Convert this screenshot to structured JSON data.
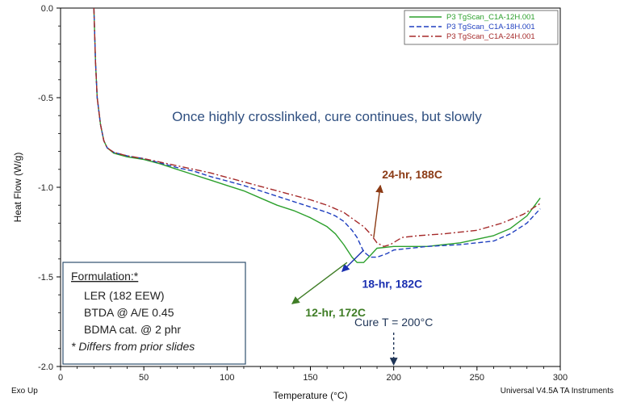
{
  "chart_data": {
    "type": "line",
    "xlabel": "Temperature (°C)",
    "ylabel": "Heat Flow (W/g)",
    "xlim": [
      0,
      300
    ],
    "ylim": [
      -2.0,
      0.0
    ],
    "x_ticks": [
      0,
      50,
      100,
      150,
      200,
      250,
      300
    ],
    "y_ticks": [
      0.0,
      -0.5,
      -1.0,
      -1.5,
      -2.0
    ],
    "x_tick_labels": [
      "0",
      "50",
      "100",
      "150",
      "200",
      "250",
      "300"
    ],
    "y_tick_labels": [
      "0.0",
      "-0.5",
      "-1.0",
      "-1.5",
      "-2.0"
    ],
    "legend_position": "top-right",
    "series": [
      {
        "name": "P3 TgScan_C1A-12H.001",
        "color": "#2ca02c",
        "style": "solid",
        "points": [
          [
            20,
            0.0
          ],
          [
            21,
            -0.3
          ],
          [
            22,
            -0.5
          ],
          [
            24,
            -0.65
          ],
          [
            26,
            -0.74
          ],
          [
            28,
            -0.78
          ],
          [
            32,
            -0.81
          ],
          [
            40,
            -0.83
          ],
          [
            50,
            -0.845
          ],
          [
            60,
            -0.87
          ],
          [
            70,
            -0.9
          ],
          [
            80,
            -0.93
          ],
          [
            90,
            -0.96
          ],
          [
            100,
            -0.99
          ],
          [
            110,
            -1.02
          ],
          [
            120,
            -1.06
          ],
          [
            130,
            -1.1
          ],
          [
            140,
            -1.13
          ],
          [
            150,
            -1.17
          ],
          [
            160,
            -1.22
          ],
          [
            165,
            -1.26
          ],
          [
            170,
            -1.32
          ],
          [
            175,
            -1.39
          ],
          [
            178,
            -1.42
          ],
          [
            182,
            -1.42
          ],
          [
            186,
            -1.38
          ],
          [
            190,
            -1.34
          ],
          [
            200,
            -1.33
          ],
          [
            220,
            -1.33
          ],
          [
            240,
            -1.31
          ],
          [
            260,
            -1.27
          ],
          [
            270,
            -1.23
          ],
          [
            280,
            -1.16
          ],
          [
            288,
            -1.06
          ]
        ]
      },
      {
        "name": "P3 TgScan_C1A-18H.001",
        "color": "#1f3fbf",
        "style": "dashed",
        "points": [
          [
            20,
            0.0
          ],
          [
            21,
            -0.3
          ],
          [
            22,
            -0.5
          ],
          [
            24,
            -0.65
          ],
          [
            26,
            -0.74
          ],
          [
            28,
            -0.78
          ],
          [
            32,
            -0.805
          ],
          [
            40,
            -0.825
          ],
          [
            50,
            -0.84
          ],
          [
            60,
            -0.865
          ],
          [
            70,
            -0.89
          ],
          [
            80,
            -0.91
          ],
          [
            90,
            -0.94
          ],
          [
            100,
            -0.965
          ],
          [
            110,
            -0.99
          ],
          [
            120,
            -1.02
          ],
          [
            130,
            -1.05
          ],
          [
            140,
            -1.08
          ],
          [
            150,
            -1.11
          ],
          [
            160,
            -1.14
          ],
          [
            165,
            -1.16
          ],
          [
            170,
            -1.19
          ],
          [
            175,
            -1.24
          ],
          [
            178,
            -1.28
          ],
          [
            182,
            -1.36
          ],
          [
            186,
            -1.39
          ],
          [
            190,
            -1.39
          ],
          [
            196,
            -1.37
          ],
          [
            200,
            -1.35
          ],
          [
            220,
            -1.33
          ],
          [
            240,
            -1.32
          ],
          [
            260,
            -1.3
          ],
          [
            270,
            -1.26
          ],
          [
            280,
            -1.2
          ],
          [
            288,
            -1.12
          ]
        ]
      },
      {
        "name": "P3 TgScan_C1A-24H.001",
        "color": "#a52a2a",
        "style": "dashdot",
        "points": [
          [
            20,
            0.0
          ],
          [
            21,
            -0.3
          ],
          [
            22,
            -0.5
          ],
          [
            24,
            -0.65
          ],
          [
            26,
            -0.74
          ],
          [
            28,
            -0.78
          ],
          [
            32,
            -0.805
          ],
          [
            40,
            -0.825
          ],
          [
            50,
            -0.84
          ],
          [
            60,
            -0.86
          ],
          [
            70,
            -0.88
          ],
          [
            80,
            -0.9
          ],
          [
            90,
            -0.92
          ],
          [
            100,
            -0.945
          ],
          [
            110,
            -0.97
          ],
          [
            120,
            -0.995
          ],
          [
            130,
            -1.02
          ],
          [
            140,
            -1.045
          ],
          [
            150,
            -1.07
          ],
          [
            160,
            -1.1
          ],
          [
            170,
            -1.14
          ],
          [
            176,
            -1.18
          ],
          [
            182,
            -1.22
          ],
          [
            186,
            -1.26
          ],
          [
            190,
            -1.31
          ],
          [
            194,
            -1.33
          ],
          [
            198,
            -1.32
          ],
          [
            205,
            -1.28
          ],
          [
            215,
            -1.27
          ],
          [
            230,
            -1.26
          ],
          [
            250,
            -1.24
          ],
          [
            265,
            -1.2
          ],
          [
            278,
            -1.15
          ],
          [
            288,
            -1.09
          ]
        ]
      }
    ],
    "annotations": {
      "main_text": "Once highly crosslinked, cure continues, but slowly",
      "peaks": [
        {
          "label": "24-hr, 188C",
          "color": "#8b3a14",
          "x": 188,
          "y": -1.28,
          "text_x": 193,
          "text_y": -0.95,
          "arrow_tip_x": 192,
          "arrow_tip_y": -0.99
        },
        {
          "label": "18-hr, 182C",
          "color": "#1a2fb0",
          "x": 182,
          "y": -1.35,
          "text_x": 181,
          "text_y": -1.56,
          "arrow_tip_x": 169,
          "arrow_tip_y": -1.47
        },
        {
          "label": "12-hr, 172C",
          "color": "#3f7d26",
          "x": 172,
          "y": -1.42,
          "text_x": 147,
          "text_y": -1.72,
          "arrow_tip_x": 139,
          "arrow_tip_y": -1.65
        }
      ],
      "cure": {
        "label": "Cure T = 200°C",
        "x": 200,
        "color": "#1f3557"
      }
    },
    "formulation": {
      "title": "Formulation:*",
      "lines": [
        "LER (182 EEW)",
        "BTDA @ A/E 0.45",
        "BDMA cat. @ 2 phr"
      ],
      "note": "* Differs from prior slides"
    },
    "footer": {
      "left": "Exo Up",
      "right": "Universal V4.5A TA Instruments"
    }
  }
}
